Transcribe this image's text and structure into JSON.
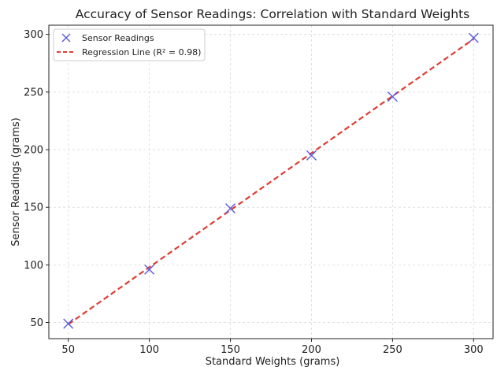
{
  "chart_data": {
    "type": "scatter",
    "title": "Accuracy of Sensor Readings: Correlation with Standard Weights",
    "xlabel": "Standard Weights (grams)",
    "ylabel": "Sensor Readings (grams)",
    "xlim": [
      38,
      312
    ],
    "ylim": [
      36,
      308
    ],
    "xticks": [
      50,
      100,
      150,
      200,
      250,
      300
    ],
    "yticks": [
      50,
      100,
      150,
      200,
      250,
      300
    ],
    "xtick_labels": [
      "50",
      "100",
      "150",
      "200",
      "250",
      "300"
    ],
    "ytick_labels": [
      "50",
      "100",
      "150",
      "200",
      "250",
      "300"
    ],
    "grid": true,
    "legend_position": "top-left",
    "series": [
      {
        "name": "Sensor Readings",
        "kind": "scatter",
        "marker": "x",
        "color": "#5a5ae0",
        "x": [
          50,
          100,
          150,
          200,
          250,
          300
        ],
        "y": [
          49,
          96,
          149,
          195,
          246,
          297
        ]
      },
      {
        "name": "Regression Line (R² = 0.98)",
        "kind": "line",
        "style": "dashed",
        "color": "#e03c31",
        "x": [
          50,
          300
        ],
        "y": [
          48.5,
          296
        ]
      }
    ]
  }
}
